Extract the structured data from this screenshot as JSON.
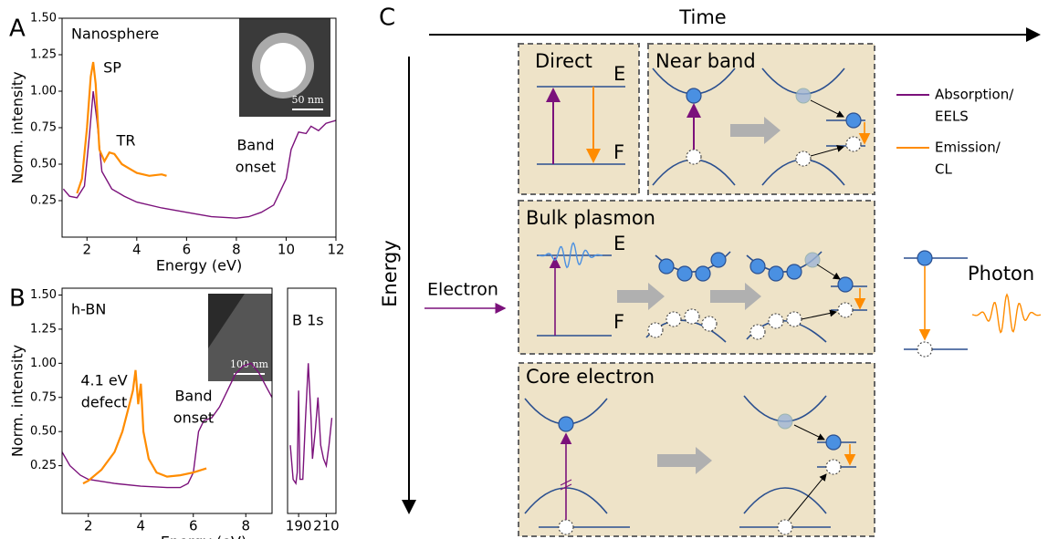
{
  "chart_data": [
    {
      "type": "line",
      "panel_label": "A",
      "title": "Nanosphere",
      "xlabel": "Energy (eV)",
      "ylabel": "Norm. intensity",
      "xlim": [
        1,
        12
      ],
      "ylim": [
        0,
        1.5
      ],
      "xticks": [
        2,
        4,
        6,
        8,
        10,
        12
      ],
      "yticks": [
        0.25,
        {
          "value": 0.5,
          "label": "0.50"
        },
        0.75,
        {
          "value": 1,
          "label": "1.00"
        },
        1.25,
        {
          "value": 1.5,
          "label": "1.50"
        }
      ],
      "annotations": [
        [
          "SP"
        ],
        [
          "TR"
        ],
        [
          "Band",
          "onset"
        ]
      ],
      "inset_scale": "50 nm",
      "series": [
        {
          "color": "#7b117b",
          "x": [
            1.05,
            1.3,
            1.6,
            1.9,
            2.1,
            2.25,
            2.4,
            2.6,
            3,
            3.5,
            4,
            5,
            6,
            7,
            8,
            8.5,
            9,
            9.5,
            10,
            10.2,
            10.5,
            10.8,
            11,
            11.3,
            11.6,
            12
          ],
          "values": [
            0.33,
            0.28,
            0.27,
            0.35,
            0.7,
            1.0,
            0.8,
            0.45,
            0.33,
            0.28,
            0.24,
            0.2,
            0.17,
            0.14,
            0.13,
            0.14,
            0.17,
            0.22,
            0.4,
            0.6,
            0.72,
            0.71,
            0.76,
            0.73,
            0.78,
            0.8
          ]
        },
        {
          "color": "#ff8c00",
          "x": [
            1.6,
            1.8,
            2.0,
            2.15,
            2.25,
            2.35,
            2.5,
            2.7,
            2.9,
            3.1,
            3.4,
            3.7,
            4,
            4.5,
            5,
            5.2
          ],
          "values": [
            0.3,
            0.4,
            0.75,
            1.1,
            1.2,
            1.05,
            0.6,
            0.52,
            0.58,
            0.57,
            0.5,
            0.47,
            0.44,
            0.42,
            0.43,
            0.42
          ]
        }
      ]
    },
    {
      "type": "line",
      "panel_label": "B",
      "title": "h-BN",
      "xlabel": "Energy (eV)",
      "ylabel": "Norm. intensity",
      "xlim": [
        1,
        9
      ],
      "ylim": [
        -0.1,
        1.55
      ],
      "xticks": [
        2,
        4,
        6,
        8
      ],
      "yticks": [
        0.25,
        {
          "value": 0.5,
          "label": "0.50"
        },
        0.75,
        {
          "value": 1,
          "label": "1.00"
        },
        1.25,
        {
          "value": 1.5,
          "label": "1.50"
        }
      ],
      "annotations": [
        [
          "4.1 eV",
          "defect"
        ],
        [
          "Band",
          "onset"
        ]
      ],
      "inset_scale": "100 nm",
      "series": [
        {
          "color": "#7b117b",
          "x": [
            1,
            1.3,
            1.7,
            2,
            3,
            4,
            5,
            5.5,
            5.8,
            6,
            6.2,
            6.4,
            6.7,
            7,
            7.3,
            7.6,
            7.9,
            8.2,
            8.5,
            8.8,
            9
          ],
          "values": [
            0.35,
            0.25,
            0.18,
            0.15,
            0.12,
            0.1,
            0.09,
            0.09,
            0.12,
            0.2,
            0.5,
            0.58,
            0.6,
            0.68,
            0.8,
            0.92,
            0.98,
            1.0,
            0.93,
            0.82,
            0.75
          ]
        },
        {
          "color": "#ff8c00",
          "x": [
            1.8,
            2,
            2.5,
            3,
            3.3,
            3.5,
            3.7,
            3.8,
            3.9,
            4.0,
            4.1,
            4.3,
            4.6,
            5,
            5.5,
            6,
            6.5
          ],
          "values": [
            0.12,
            0.14,
            0.22,
            0.35,
            0.5,
            0.65,
            0.8,
            0.95,
            0.7,
            0.85,
            0.5,
            0.3,
            0.2,
            0.17,
            0.18,
            0.2,
            0.23
          ]
        }
      ]
    },
    {
      "type": "line",
      "title": "B 1s",
      "xlim": [
        182,
        217
      ],
      "ylim": [
        -0.1,
        1.55
      ],
      "xticks": [
        190,
        210
      ],
      "series": [
        {
          "color": "#7b117b",
          "x": [
            184,
            186,
            188,
            189,
            190,
            191,
            193,
            195,
            197,
            199,
            200,
            202,
            204,
            206,
            208,
            210,
            212,
            214
          ],
          "values": [
            0.4,
            0.15,
            0.12,
            0.2,
            0.8,
            0.15,
            0.15,
            0.6,
            1.0,
            0.6,
            0.3,
            0.5,
            0.75,
            0.4,
            0.3,
            0.25,
            0.4,
            0.6
          ]
        }
      ]
    }
  ],
  "diagram": {
    "label": "C",
    "time": "Time",
    "energy": "Energy",
    "electron": "Electron",
    "boxes": [
      {
        "title": "Direct",
        "levels": [
          "E",
          "F"
        ]
      },
      {
        "title": "Near band"
      },
      {
        "title": "Bulk plasmon",
        "levels": [
          "E",
          "F"
        ]
      },
      {
        "title": "Core electron"
      }
    ],
    "legend": [
      [
        "Absorption/",
        "EELS"
      ],
      [
        "Emission/",
        "CL"
      ]
    ],
    "photon": "Photon"
  }
}
